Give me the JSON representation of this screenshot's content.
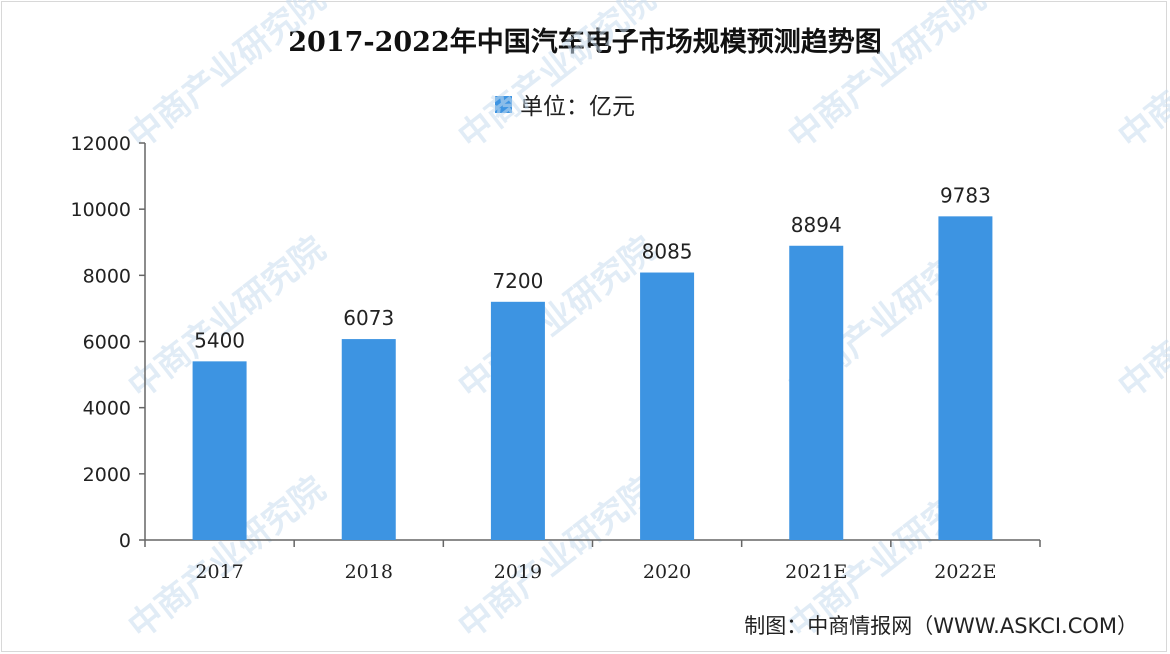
{
  "chart_data": {
    "type": "bar",
    "title": "2017-2022年中国汽车电子市场规模预测趋势图",
    "legend": "单位：亿元",
    "categories": [
      "2017",
      "2018",
      "2019",
      "2020",
      "2021E",
      "2022E"
    ],
    "values": [
      5400,
      6073,
      7200,
      8085,
      8894,
      9783
    ],
    "ylim": [
      0,
      12000
    ],
    "yticks": [
      0,
      2000,
      4000,
      6000,
      8000,
      10000,
      12000
    ],
    "bar_color": "#3d94e2",
    "grid": false,
    "legend_position": "top-center"
  },
  "source": "制图：中商情报网（WWW.ASKCI.COM）",
  "watermark": "中商产业研究院"
}
